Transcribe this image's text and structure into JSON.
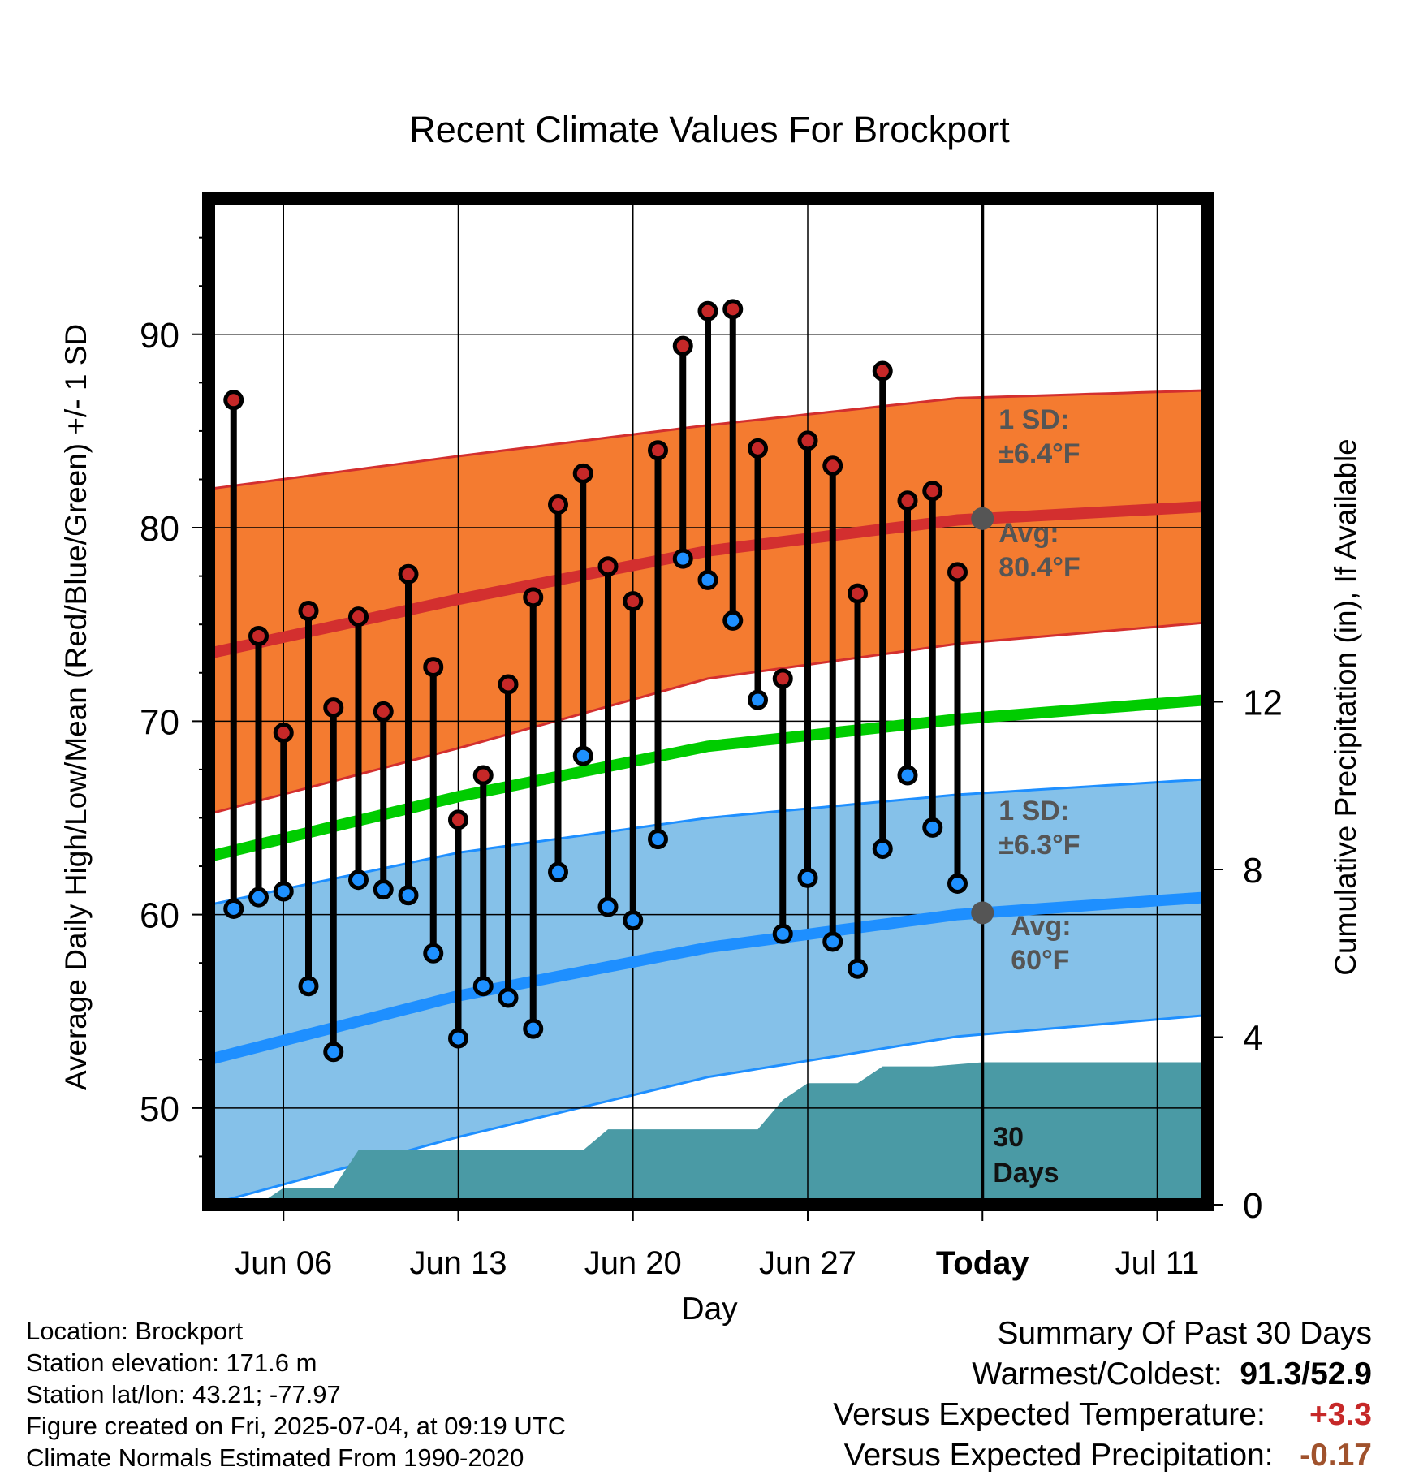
{
  "title": "Recent Climate Values For Brockport",
  "chart_data": {
    "type": "line",
    "title": "Recent Climate Values For Brockport",
    "xlabel": "Day",
    "ylabel": "Average Daily High/Low/Mean (Red/Blue/Green) +/- 1 SD",
    "y2label": "Cumulative Precipitation (in), If Available",
    "xlim": [
      "2025-06-03",
      "2025-07-13"
    ],
    "ylim": [
      45,
      97
    ],
    "y2lim": [
      0,
      24
    ],
    "x_ticks": [
      {
        "date": "2025-06-06",
        "label": "Jun 06"
      },
      {
        "date": "2025-06-13",
        "label": "Jun 13"
      },
      {
        "date": "2025-06-20",
        "label": "Jun 20"
      },
      {
        "date": "2025-06-27",
        "label": "Jun 27"
      },
      {
        "date": "2025-07-04",
        "label": "Today"
      },
      {
        "date": "2025-07-11",
        "label": "Jul 11"
      }
    ],
    "y_ticks": [
      "50",
      "60",
      "70",
      "80",
      "90"
    ],
    "y2_ticks": [
      "0",
      "4",
      "8",
      "12"
    ],
    "grid": true,
    "today": "2025-07-04",
    "dates": [
      "2025-06-04",
      "2025-06-05",
      "2025-06-06",
      "2025-06-07",
      "2025-06-08",
      "2025-06-09",
      "2025-06-10",
      "2025-06-11",
      "2025-06-12",
      "2025-06-13",
      "2025-06-14",
      "2025-06-15",
      "2025-06-16",
      "2025-06-17",
      "2025-06-18",
      "2025-06-19",
      "2025-06-20",
      "2025-06-21",
      "2025-06-22",
      "2025-06-23",
      "2025-06-24",
      "2025-06-25",
      "2025-06-26",
      "2025-06-27",
      "2025-06-28",
      "2025-06-29",
      "2025-06-30",
      "2025-07-01",
      "2025-07-02",
      "2025-07-03"
    ],
    "series": [
      {
        "name": "High",
        "color": "#c62828",
        "values": [
          86.6,
          74.4,
          69.4,
          75.7,
          70.7,
          75.4,
          70.5,
          77.6,
          72.8,
          64.9,
          67.2,
          71.9,
          76.4,
          81.2,
          82.8,
          78.0,
          76.2,
          84.0,
          89.4,
          91.2,
          91.3,
          84.1,
          72.2,
          84.5,
          83.2,
          76.6,
          88.1,
          81.4,
          81.9,
          77.7
        ]
      },
      {
        "name": "Low",
        "color": "#1e90ff",
        "values": [
          60.3,
          60.9,
          61.2,
          56.3,
          52.9,
          61.8,
          61.3,
          61.0,
          58.0,
          53.6,
          56.3,
          55.7,
          54.1,
          62.2,
          68.2,
          60.4,
          59.7,
          63.9,
          78.4,
          77.3,
          75.2,
          71.1,
          59.0,
          61.9,
          58.6,
          57.2,
          63.4,
          67.2,
          64.5,
          61.6
        ]
      }
    ],
    "normals": {
      "dates": [
        "2025-06-03",
        "2025-06-13",
        "2025-06-23",
        "2025-07-03",
        "2025-07-13"
      ],
      "high_avg": [
        73.5,
        76.3,
        78.8,
        80.4,
        81.1
      ],
      "high_upper": [
        82.0,
        83.7,
        85.3,
        86.7,
        87.1
      ],
      "high_lower": [
        65.2,
        68.6,
        72.2,
        74.0,
        75.1
      ],
      "low_avg": [
        52.5,
        55.8,
        58.3,
        60.0,
        60.9
      ],
      "low_upper": [
        60.5,
        63.2,
        65.0,
        66.2,
        67.0
      ],
      "low_lower": [
        45.0,
        48.5,
        51.6,
        53.7,
        54.8
      ],
      "mean_avg": [
        63.0,
        66.1,
        68.7,
        70.1,
        71.1
      ]
    },
    "precipitation": {
      "dates": [
        "2025-06-03",
        "2025-06-05",
        "2025-06-06",
        "2025-06-07",
        "2025-06-08",
        "2025-06-09",
        "2025-06-18",
        "2025-06-19",
        "2025-06-20",
        "2025-06-25",
        "2025-06-26",
        "2025-06-27",
        "2025-06-29",
        "2025-06-30",
        "2025-07-02",
        "2025-07-04",
        "2025-07-13"
      ],
      "values": [
        0,
        0,
        0.4,
        0.4,
        0.4,
        1.3,
        1.3,
        1.8,
        1.8,
        1.8,
        2.5,
        2.9,
        2.9,
        3.3,
        3.3,
        3.4,
        3.4
      ]
    },
    "annotations": {
      "high_sd": "±6.4°F",
      "high_avg": "80.4°F",
      "low_sd": "±6.3°F",
      "low_avg": "60°F",
      "sd_label": "1 SD:",
      "avg_label": "Avg:",
      "days_num": "30",
      "days_word": "Days"
    },
    "colors": {
      "high_band": "#f47b30",
      "high_line": "#d32f2f",
      "low_band": "#85c1e9",
      "low_line": "#1e8fff",
      "mean_line": "#00cc00",
      "precip": "#4a9aa5",
      "annotation": "#555555"
    }
  },
  "footer": {
    "location": "Location: Brockport",
    "elevation": "Station elevation: 171.6 m",
    "latlon": "Station lat/lon: 43.21; -77.97",
    "created": "Figure created on Fri, 2025-07-04, at 09:19 UTC",
    "normals": "Climate Normals Estimated From 1990-2020"
  },
  "summary": {
    "heading": "Summary Of Past 30 Days",
    "warmest_label": "Warmest/Coldest:",
    "warmest_value": "91.3",
    "coldest_value": "52.9",
    "temp_label": "Versus Expected Temperature:",
    "temp_value": "+3.3",
    "precip_label": "Versus Expected Precipitation:",
    "precip_value": "-0.17"
  }
}
